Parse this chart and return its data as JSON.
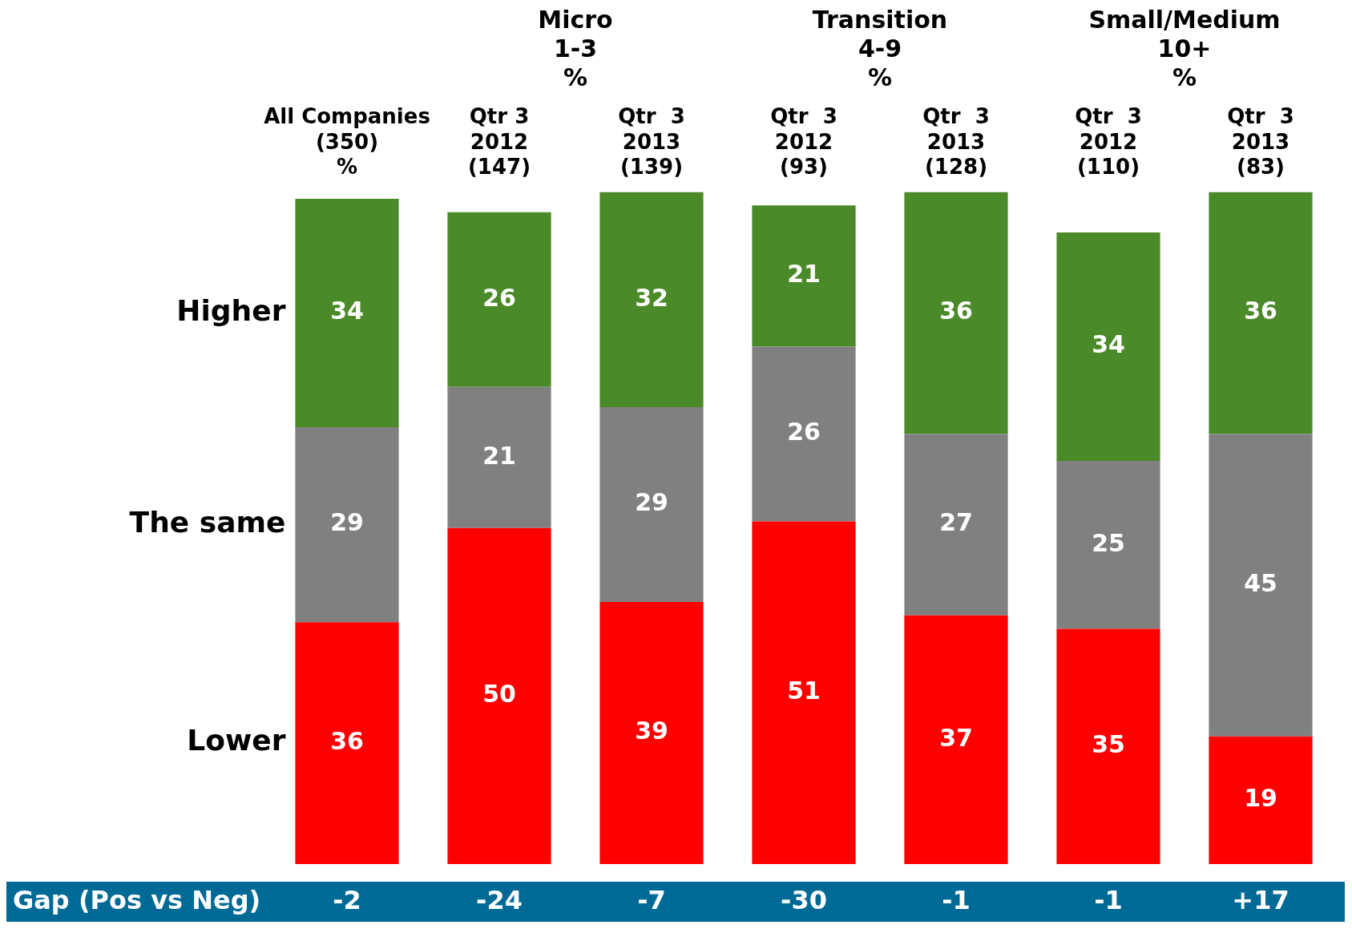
{
  "chart_data": {
    "type": "bar",
    "stacked": true,
    "data_labels": true,
    "legend": false,
    "grid": false,
    "categories": [
      "All Companies\n(350)\n%",
      "Qtr 3\n2012\n(147)",
      "Qtr  3\n2013\n(139)",
      "Qtr  3\n2012\n(93)",
      "Qtr  3\n2013\n(128)",
      "Qtr  3\n2012\n(110)",
      "Qtr  3\n2013\n(83)"
    ],
    "series": [
      {
        "name": "Lower",
        "color": "#ff0000",
        "values": [
          36,
          50,
          39,
          51,
          37,
          35,
          19
        ]
      },
      {
        "name": "The same",
        "color": "#808080",
        "values": [
          29,
          21,
          29,
          26,
          27,
          25,
          45
        ]
      },
      {
        "name": "Higher",
        "color": "#4a8a28",
        "values": [
          34,
          26,
          32,
          21,
          36,
          34,
          36
        ]
      }
    ],
    "annotations": [
      "Micro\n1-3\n%",
      "Transition\n4-9\n%",
      "Small/Medium\n10+\n%",
      "Gap (Pos vs Neg)",
      "-2",
      "-24",
      "-7",
      "-30",
      "-1",
      "-1",
      "+17"
    ]
  }
}
